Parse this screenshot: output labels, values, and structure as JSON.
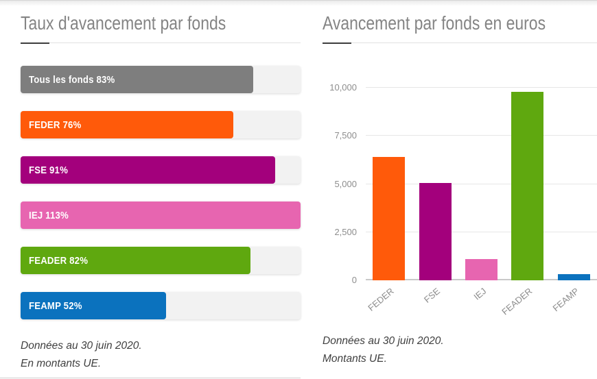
{
  "chart_data": [
    {
      "type": "bar",
      "orientation": "horizontal",
      "title": "Taux d'avancement par fonds",
      "categories": [
        "Tous les fonds",
        "FEDER",
        "FSE",
        "IEJ",
        "FEADER",
        "FEAMP"
      ],
      "values": [
        83,
        76,
        91,
        113,
        82,
        52
      ],
      "value_unit": "%",
      "bar_labels": [
        "Tous les fonds 83%",
        "FEDER 76%",
        "FSE 91%",
        "IEJ 113%",
        "FEADER 82%",
        "FEAMP 52%"
      ],
      "colors": [
        "#7e7e7e",
        "#ff5a0a",
        "#a3007c",
        "#e765b0",
        "#5fa80f",
        "#0b72be"
      ],
      "xlim": [
        0,
        100
      ],
      "notes": [
        "Données au 30 juin 2020.",
        "En montants UE."
      ]
    },
    {
      "type": "bar",
      "orientation": "vertical",
      "title": "Avancement par fonds en euros",
      "categories": [
        "FEDER",
        "FSE",
        "IEJ",
        "FEADER",
        "FEAMP"
      ],
      "values": [
        6400,
        5050,
        1100,
        9800,
        320
      ],
      "colors": [
        "#ff5a0a",
        "#a3007c",
        "#e765b0",
        "#5fa80f",
        "#0b72be"
      ],
      "ylim": [
        0,
        10000
      ],
      "yticks": [
        0,
        2500,
        5000,
        7500,
        10000
      ],
      "ytick_labels": [
        "0",
        "2,500",
        "5,000",
        "7,500",
        "10,000"
      ],
      "grid": true,
      "legend": "none",
      "notes": [
        "Données au 30 juin 2020.",
        "Montants UE."
      ]
    }
  ],
  "theme": {
    "title_color": "#848484",
    "underline_accent": "#3d3d3d",
    "track_color": "#f2f2f2",
    "grid_color": "#e6e6e6",
    "zero_line_color": "#c9c9c9",
    "axis_label_color": "#8d8d8d",
    "note_color": "#3f3f3f"
  }
}
